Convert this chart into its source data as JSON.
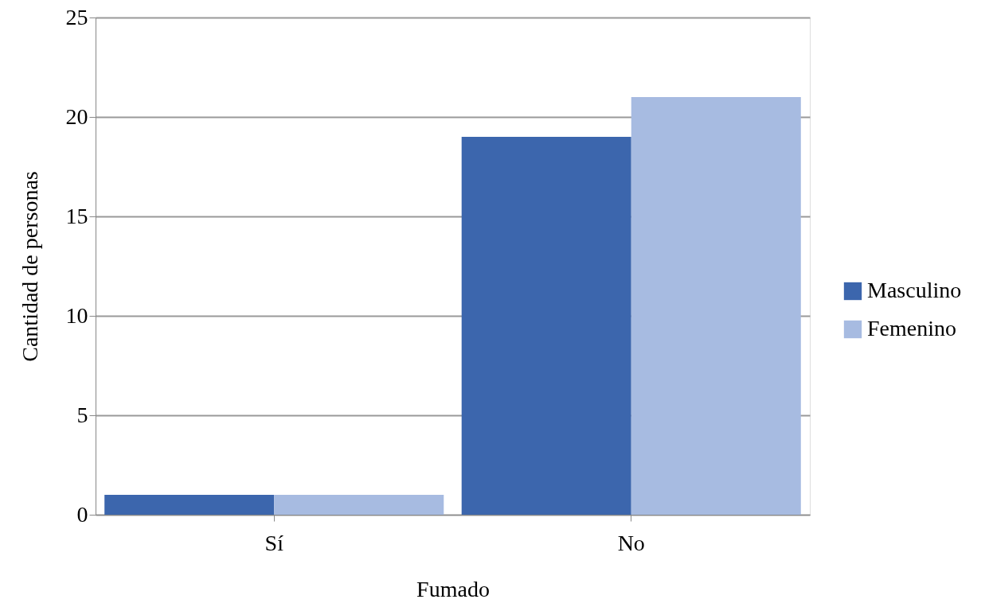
{
  "chart_data": {
    "type": "bar",
    "xlabel": "Fumado",
    "ylabel": "Cantidad de personas",
    "categories": [
      "Sí",
      "No"
    ],
    "series": [
      {
        "name": "Masculino",
        "color": "#3c66ad",
        "values": [
          1,
          19
        ]
      },
      {
        "name": "Femenino",
        "color": "#a7bbe1",
        "values": [
          1,
          21
        ]
      }
    ],
    "ylim": [
      0,
      25
    ],
    "yticks": [
      0,
      5,
      10,
      15,
      20,
      25
    ],
    "grid": "y",
    "legend": "right"
  }
}
